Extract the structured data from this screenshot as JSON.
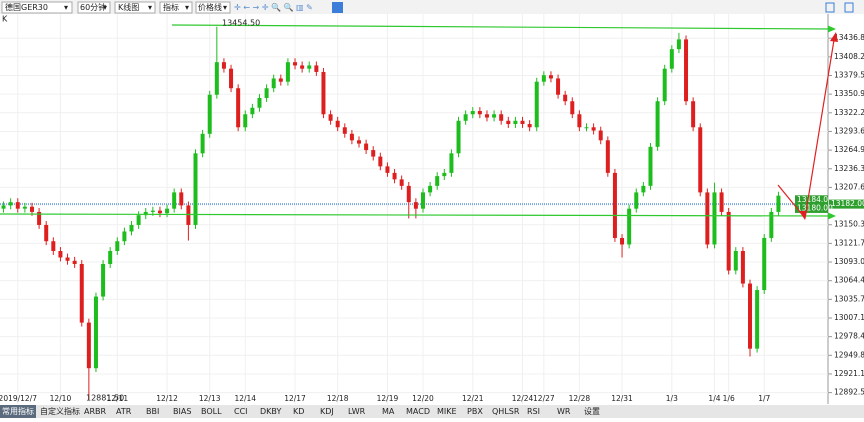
{
  "toolbar": {
    "symbol": "德国GER30",
    "period": "60分钟",
    "chart_kind": "K线图",
    "indicator": "指标",
    "price_line": "价格线"
  },
  "panel_label": "K",
  "chart_data": {
    "type": "candlestick",
    "up_color": "#1ebd1e",
    "down_color": "#dd1f1f",
    "categories": [
      null,
      null,
      "2019/12/7",
      null,
      null,
      null,
      null,
      null,
      "12/10",
      null,
      null,
      null,
      null,
      null,
      null,
      null,
      "12/11",
      null,
      null,
      null,
      null,
      null,
      null,
      "12/12",
      null,
      null,
      null,
      null,
      null,
      "12/13",
      null,
      null,
      null,
      null,
      "12/14",
      null,
      null,
      null,
      null,
      null,
      null,
      "12/17",
      null,
      null,
      null,
      null,
      null,
      "12/18",
      null,
      null,
      null,
      null,
      null,
      null,
      "12/19",
      null,
      null,
      null,
      null,
      "12/20",
      null,
      null,
      null,
      null,
      null,
      null,
      "12/21",
      null,
      null,
      null,
      null,
      null,
      null,
      "12/24",
      null,
      null,
      "12/27",
      null,
      null,
      null,
      null,
      "12/28",
      null,
      null,
      null,
      null,
      null,
      "12/31",
      null,
      null,
      null,
      null,
      null,
      null,
      "1/3",
      null,
      null,
      null,
      null,
      null,
      "1/4",
      null,
      "1/6",
      null,
      null,
      null,
      null,
      "1/7",
      null,
      null
    ],
    "open": [
      13175,
      13180,
      13185,
      13175,
      13178,
      13170,
      13150,
      13125,
      13110,
      13100,
      13095,
      13090,
      13000,
      12930,
      13040,
      13090,
      13110,
      13125,
      13140,
      13150,
      13165,
      13170,
      13172,
      13168,
      13175,
      13200,
      13180,
      13150,
      13260,
      13290,
      13350,
      13400,
      13390,
      13360,
      13300,
      13320,
      13330,
      13345,
      13360,
      13375,
      13370,
      13400,
      13395,
      13390,
      13395,
      13385,
      13320,
      13310,
      13300,
      13290,
      13280,
      13275,
      13265,
      13255,
      13240,
      13230,
      13220,
      13210,
      13185,
      13175,
      13200,
      13210,
      13225,
      13230,
      13260,
      13310,
      13320,
      13325,
      13320,
      13315,
      13320,
      13310,
      13305,
      13310,
      13305,
      13300,
      13370,
      13380,
      13375,
      13350,
      13340,
      13320,
      13300,
      13300,
      13295,
      13280,
      13230,
      13130,
      13120,
      13175,
      13200,
      13210,
      13270,
      13340,
      13390,
      13420,
      13435,
      13340,
      13300,
      13200,
      13120,
      13200,
      13170,
      13080,
      13110,
      13060,
      12960,
      13050,
      13130,
      13170
    ],
    "high": [
      13186,
      13191,
      13191,
      13184,
      13184,
      13176,
      13156,
      13131,
      13116,
      13106,
      13101,
      13096,
      13006,
      13046,
      13096,
      13116,
      13131,
      13146,
      13156,
      13171,
      13176,
      13178,
      13178,
      13181,
      13206,
      13206,
      13186,
      13266,
      13296,
      13356,
      13454.5,
      13406,
      13396,
      13366,
      13326,
      13336,
      13351,
      13366,
      13381,
      13381,
      13406,
      13406,
      13401,
      13401,
      13401,
      13391,
      13326,
      13316,
      13306,
      13296,
      13286,
      13281,
      13271,
      13261,
      13246,
      13236,
      13226,
      13216,
      13191,
      13206,
      13216,
      13231,
      13236,
      13266,
      13316,
      13326,
      13331,
      13331,
      13326,
      13326,
      13326,
      13316,
      13316,
      13316,
      13311,
      13376,
      13386,
      13386,
      13381,
      13356,
      13346,
      13326,
      13306,
      13306,
      13301,
      13286,
      13236,
      13136,
      13181,
      13206,
      13216,
      13276,
      13346,
      13396,
      13426,
      13445,
      13441,
      13346,
      13306,
      13206,
      13215,
      13206,
      13176,
      13116,
      13116,
      13066,
      13056,
      13136,
      13176,
      13201
    ],
    "low": [
      13169,
      13174,
      13169,
      13169,
      13164,
      13144,
      13119,
      13104,
      13094,
      13089,
      13084,
      12994,
      12881.5,
      12924,
      13034,
      13084,
      13104,
      13119,
      13134,
      13144,
      13159,
      13164,
      13162,
      13162,
      13169,
      13174,
      13126,
      13144,
      13254,
      13284,
      13344,
      13384,
      13354,
      13294,
      13294,
      13314,
      13324,
      13339,
      13354,
      13364,
      13364,
      13389,
      13384,
      13384,
      13379,
      13314,
      13304,
      13294,
      13284,
      13274,
      13269,
      13259,
      13249,
      13234,
      13224,
      13214,
      13204,
      13160,
      13160,
      13169,
      13194,
      13204,
      13219,
      13224,
      13254,
      13304,
      13314,
      13314,
      13309,
      13309,
      13304,
      13299,
      13299,
      13299,
      13294,
      13294,
      13364,
      13369,
      13344,
      13334,
      13314,
      13294,
      13294,
      13289,
      13274,
      13224,
      13124,
      13100,
      13114,
      13169,
      13194,
      13204,
      13264,
      13334,
      13384,
      13414,
      13334,
      13294,
      13194,
      13114,
      13114,
      13164,
      13074,
      13074,
      13054,
      12948,
      12954,
      13044,
      13124,
      13164
    ],
    "close": [
      13180,
      13185,
      13175,
      13178,
      13170,
      13150,
      13125,
      13110,
      13100,
      13095,
      13090,
      13000,
      12930,
      13040,
      13090,
      13110,
      13125,
      13140,
      13150,
      13165,
      13170,
      13172,
      13168,
      13175,
      13200,
      13180,
      13150,
      13260,
      13290,
      13350,
      13400,
      13390,
      13360,
      13300,
      13320,
      13330,
      13345,
      13360,
      13375,
      13370,
      13400,
      13395,
      13390,
      13395,
      13385,
      13320,
      13310,
      13300,
      13290,
      13280,
      13275,
      13265,
      13255,
      13240,
      13230,
      13220,
      13210,
      13185,
      13175,
      13200,
      13210,
      13225,
      13230,
      13260,
      13310,
      13320,
      13325,
      13320,
      13315,
      13320,
      13310,
      13305,
      13310,
      13305,
      13300,
      13370,
      13380,
      13375,
      13350,
      13340,
      13320,
      13300,
      13300,
      13295,
      13280,
      13230,
      13130,
      13120,
      13175,
      13200,
      13210,
      13270,
      13340,
      13390,
      13420,
      13435,
      13340,
      13300,
      13200,
      13120,
      13200,
      13170,
      13080,
      13110,
      13060,
      12960,
      13050,
      13130,
      13170,
      13195
    ],
    "ylim": [
      12875,
      13474
    ],
    "yticks": [
      13436.85,
      {
        "value": 13408.2,
        "label": "13408.20"
      },
      13379.55,
      {
        "value": 13350.9,
        "label": "13350.90"
      },
      13322.25,
      {
        "value": 13293.6,
        "label": "13293.60"
      },
      13264.95,
      {
        "value": 13236.3,
        "label": "13236.30"
      },
      13207.65,
      13150.35,
      {
        "value": 13121.7,
        "label": "13121.70"
      },
      13093.05,
      {
        "value": 13064.4,
        "label": "13064.40"
      },
      13035.75,
      {
        "value": 13007.1,
        "label": "13007.10"
      },
      12978.45,
      {
        "value": 12949.8,
        "label": "12949.80"
      },
      12921.15,
      {
        "value": 12892.5,
        "label": "12892.50"
      }
    ],
    "annotations": [
      "13454.50",
      "12881.50"
    ],
    "price_labels": [
      {
        "value": 13184,
        "label": "13184.00"
      },
      {
        "value": 13182,
        "label": "13182.00"
      },
      {
        "value": 13180,
        "label": "13180.00"
      }
    ],
    "grid": true
  },
  "tabs": [
    "常用指标",
    "自定义指标",
    "ARBR",
    "ATR",
    "BBI",
    "BIAS",
    "BOLL",
    "CCI",
    "DKBY",
    "KD",
    "KDJ",
    "LWR",
    "MA",
    "MACD",
    "MIKE",
    "PBX",
    "QHLSR",
    "RSI",
    "WR",
    "设置"
  ]
}
